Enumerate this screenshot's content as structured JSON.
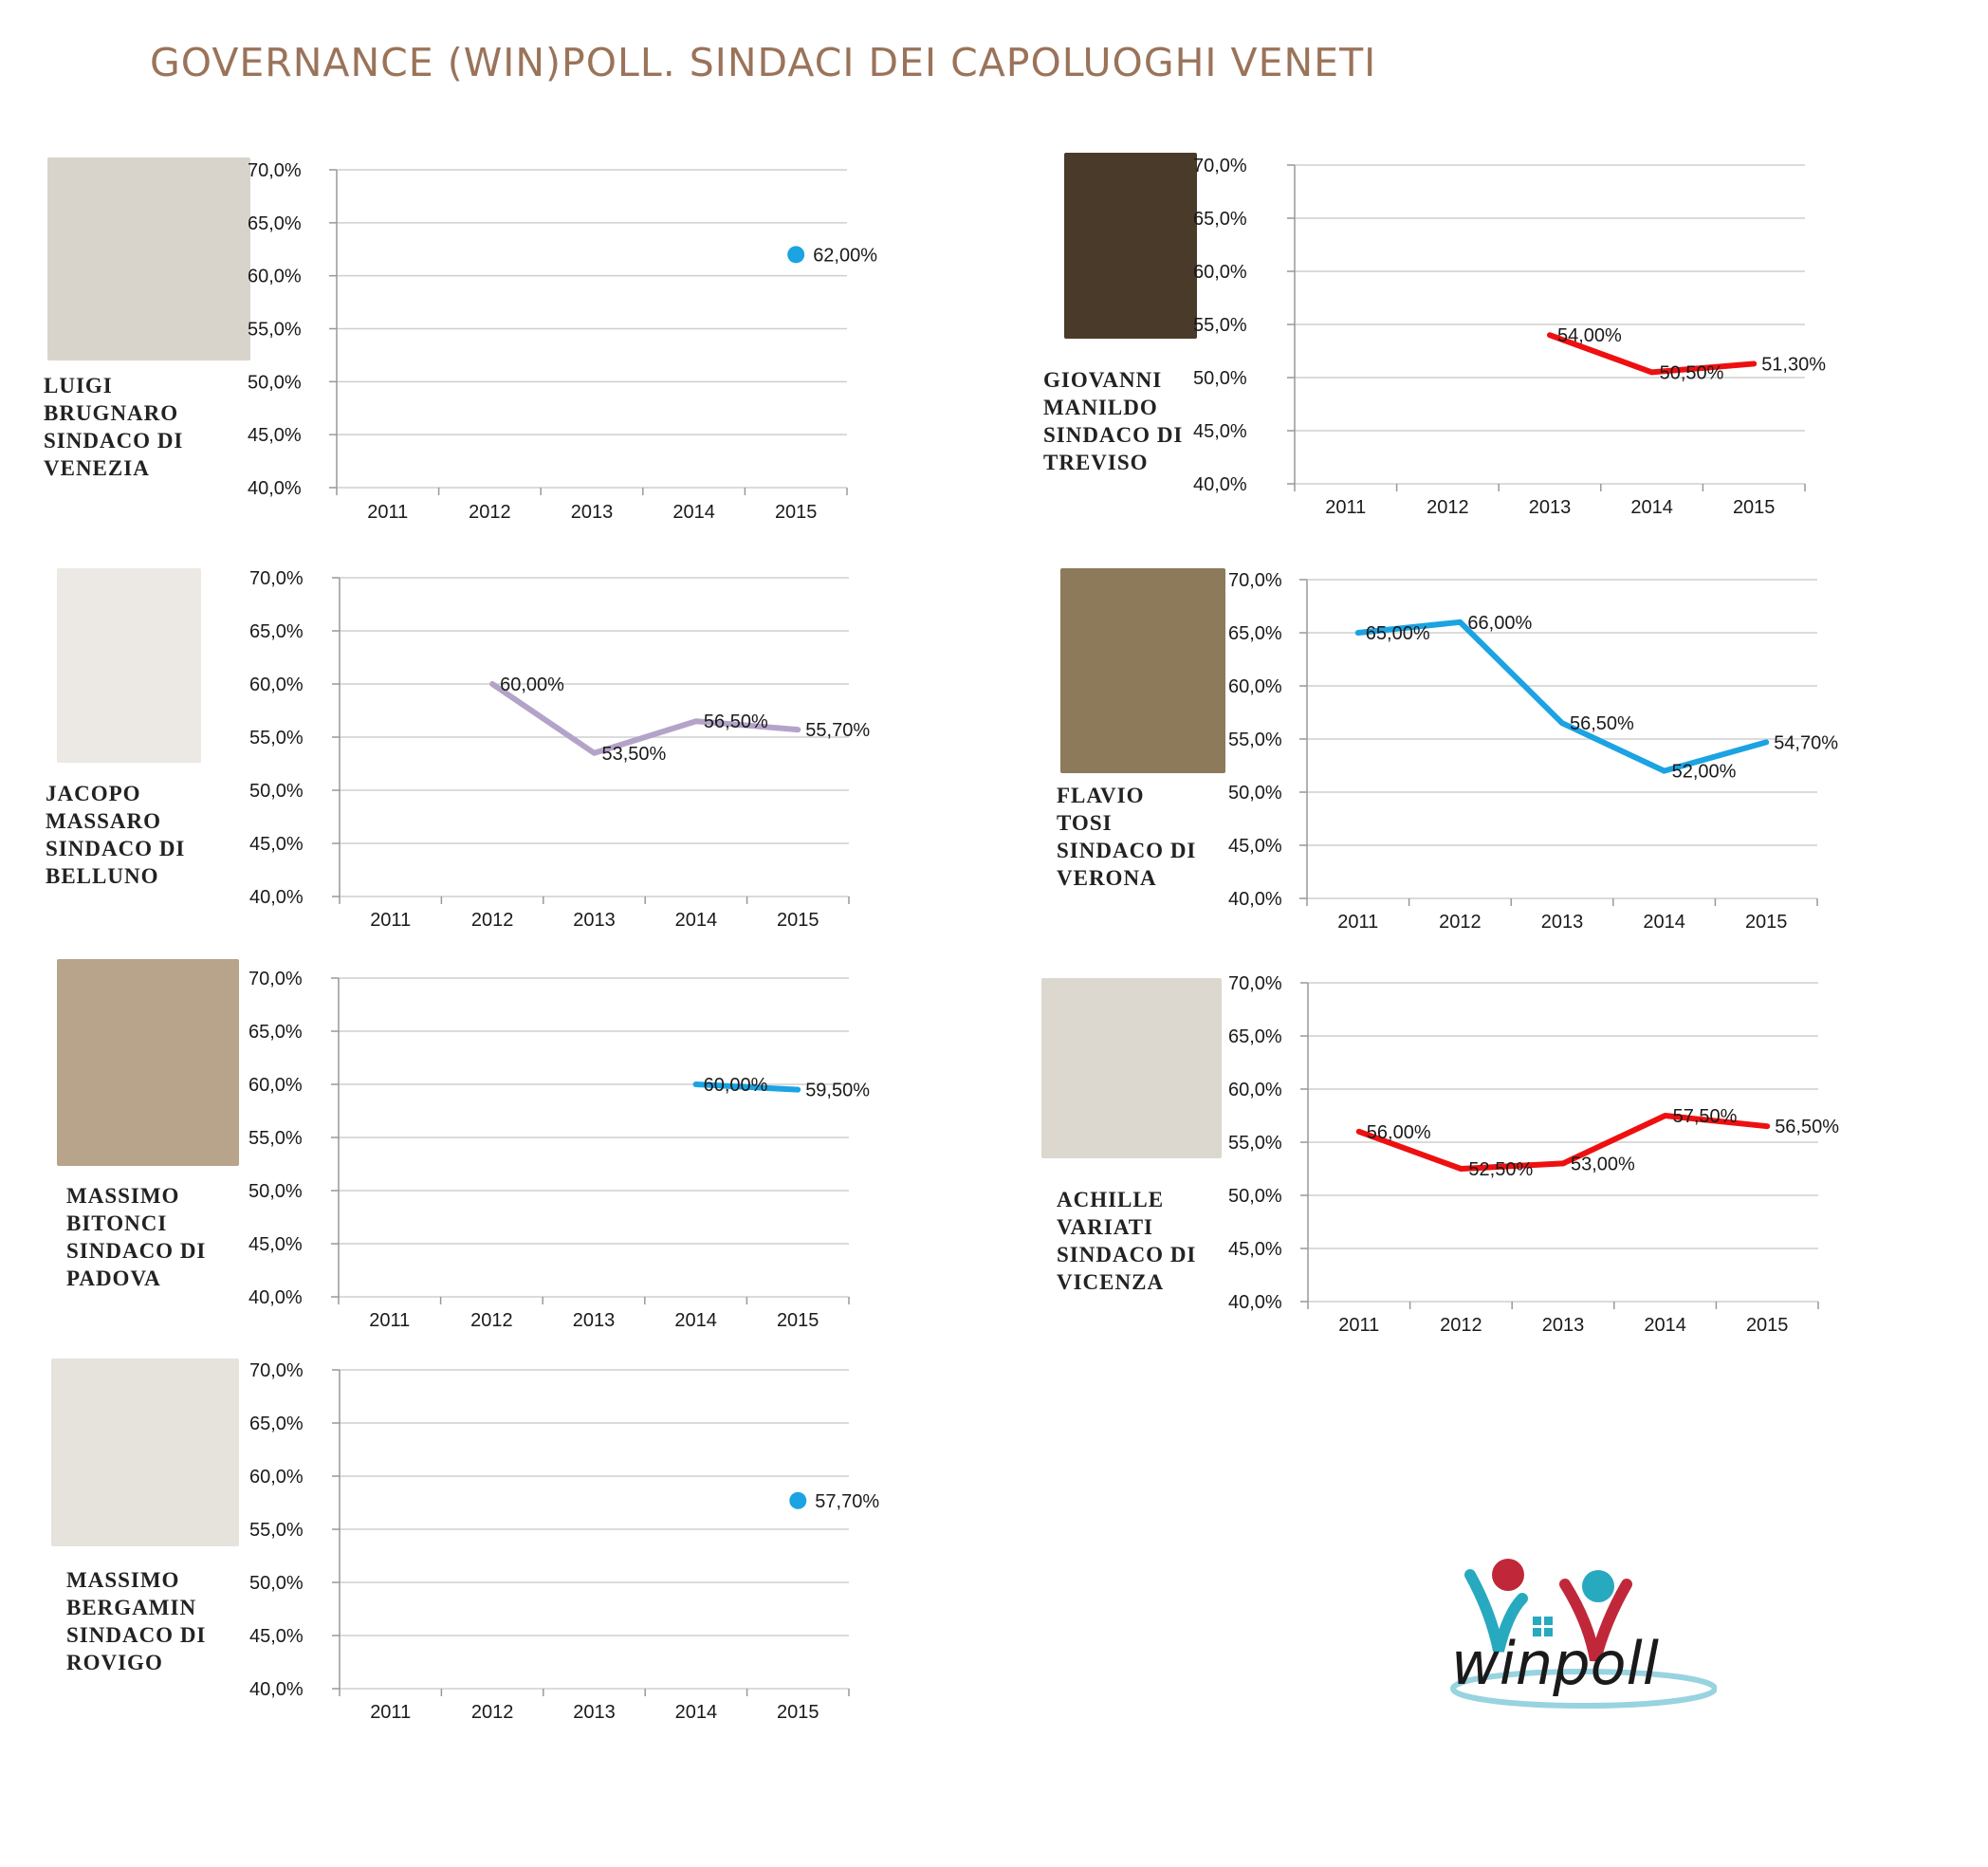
{
  "page": {
    "title": "GOVERNANCE (WIN)POLL. SINDACI DEI CAPOLUOGHI VENETI"
  },
  "colors": {
    "title": "#9a7359",
    "blue": "#1ba3e2",
    "red": "#ee1010",
    "lilac": "#b4a3c9",
    "grid": "#cfcfcf"
  },
  "mayors": [
    {
      "id": "venezia",
      "caption": [
        "LUIGI",
        "BRUGNARO",
        "SINDACO DI",
        "VENEZIA"
      ],
      "photo_icon": "portrait-icon"
    },
    {
      "id": "treviso",
      "caption": [
        "GIOVANNI",
        "MANILDO",
        "SINDACO DI",
        "TREVISO"
      ],
      "photo_icon": "portrait-icon"
    },
    {
      "id": "belluno",
      "caption": [
        "JACOPO",
        "MASSARO",
        "SINDACO DI",
        "BELLUNO"
      ],
      "photo_icon": "portrait-icon"
    },
    {
      "id": "verona",
      "caption": [
        "FLAVIO",
        "TOSI",
        "SINDACO DI",
        "VERONA"
      ],
      "photo_icon": "portrait-icon"
    },
    {
      "id": "padova",
      "caption": [
        "MASSIMO",
        "BITONCI",
        "SINDACO DI",
        "PADOVA"
      ],
      "photo_icon": "portrait-icon"
    },
    {
      "id": "vicenza",
      "caption": [
        "ACHILLE",
        "VARIATI",
        "SINDACO DI",
        "VICENZA"
      ],
      "photo_icon": "portrait-icon"
    },
    {
      "id": "rovigo",
      "caption": [
        "MASSIMO",
        "BERGAMIN",
        "SINDACO DI",
        "ROVIGO"
      ],
      "photo_icon": "portrait-icon"
    }
  ],
  "chart_data": [
    {
      "type": "line",
      "categories": [
        "2011",
        "2012",
        "2013",
        "2014",
        "2015"
      ],
      "ylim": [
        40,
        70
      ],
      "yticks": [
        "40,0%",
        "45,0%",
        "50,0%",
        "55,0%",
        "60,0%",
        "65,0%",
        "70,0%"
      ],
      "grid": true,
      "color": "#1ba3e2",
      "marker": "point",
      "series": [
        {
          "values": [
            null,
            null,
            null,
            null,
            62.0
          ],
          "labels": [
            null,
            null,
            null,
            null,
            "62,00%"
          ]
        }
      ]
    },
    {
      "type": "line",
      "categories": [
        "2011",
        "2012",
        "2013",
        "2014",
        "2015"
      ],
      "ylim": [
        40,
        70
      ],
      "yticks": [
        "40,0%",
        "45,0%",
        "50,0%",
        "55,0%",
        "60,0%",
        "65,0%",
        "70,0%"
      ],
      "grid": true,
      "color": "#ee1010",
      "marker": "line",
      "series": [
        {
          "values": [
            null,
            null,
            54.0,
            50.5,
            51.3
          ],
          "labels": [
            null,
            null,
            "54,00%",
            "50,50%",
            "51,30%"
          ]
        }
      ]
    },
    {
      "type": "line",
      "categories": [
        "2011",
        "2012",
        "2013",
        "2014",
        "2015"
      ],
      "ylim": [
        40,
        70
      ],
      "yticks": [
        "40,0%",
        "45,0%",
        "50,0%",
        "55,0%",
        "60,0%",
        "65,0%",
        "70,0%"
      ],
      "grid": true,
      "color": "#b4a3c9",
      "marker": "line",
      "series": [
        {
          "values": [
            null,
            60.0,
            53.5,
            56.5,
            55.7
          ],
          "labels": [
            null,
            "60,00%",
            "53,50%",
            "56,50%",
            "55,70%"
          ]
        }
      ]
    },
    {
      "type": "line",
      "categories": [
        "2011",
        "2012",
        "2013",
        "2014",
        "2015"
      ],
      "ylim": [
        40,
        70
      ],
      "yticks": [
        "40,0%",
        "45,0%",
        "50,0%",
        "55,0%",
        "60,0%",
        "65,0%",
        "70,0%"
      ],
      "grid": true,
      "color": "#1ba3e2",
      "marker": "line",
      "series": [
        {
          "values": [
            65.0,
            66.0,
            56.5,
            52.0,
            54.7
          ],
          "labels": [
            "65,00%",
            "66,00%",
            "56,50%",
            "52,00%",
            "54,70%"
          ]
        }
      ]
    },
    {
      "type": "line",
      "categories": [
        "2011",
        "2012",
        "2013",
        "2014",
        "2015"
      ],
      "ylim": [
        40,
        70
      ],
      "yticks": [
        "40,0%",
        "45,0%",
        "50,0%",
        "55,0%",
        "60,0%",
        "65,0%",
        "70,0%"
      ],
      "grid": true,
      "color": "#1ba3e2",
      "marker": "line",
      "series": [
        {
          "values": [
            null,
            null,
            null,
            60.0,
            59.5
          ],
          "labels": [
            null,
            null,
            null,
            "60,00%",
            "59,50%"
          ]
        }
      ]
    },
    {
      "type": "line",
      "categories": [
        "2011",
        "2012",
        "2013",
        "2014",
        "2015"
      ],
      "ylim": [
        40,
        70
      ],
      "yticks": [
        "40,0%",
        "45,0%",
        "50,0%",
        "55,0%",
        "60,0%",
        "65,0%",
        "70,0%"
      ],
      "grid": true,
      "color": "#ee1010",
      "marker": "line",
      "series": [
        {
          "values": [
            56.0,
            52.5,
            53.0,
            57.5,
            56.5
          ],
          "labels": [
            "56,00%",
            "52,50%",
            "53,00%",
            "57,50%",
            "56,50%"
          ]
        }
      ]
    },
    {
      "type": "line",
      "categories": [
        "2011",
        "2012",
        "2013",
        "2014",
        "2015"
      ],
      "ylim": [
        40,
        70
      ],
      "yticks": [
        "40,0%",
        "45,0%",
        "50,0%",
        "55,0%",
        "60,0%",
        "65,0%",
        "70,0%"
      ],
      "grid": true,
      "color": "#1ba3e2",
      "marker": "point",
      "series": [
        {
          "values": [
            null,
            null,
            null,
            null,
            57.7
          ],
          "labels": [
            null,
            null,
            null,
            null,
            "57,70%"
          ]
        }
      ]
    }
  ],
  "logo": {
    "text": "winpoll",
    "icon": "winpoll-logo-icon"
  }
}
